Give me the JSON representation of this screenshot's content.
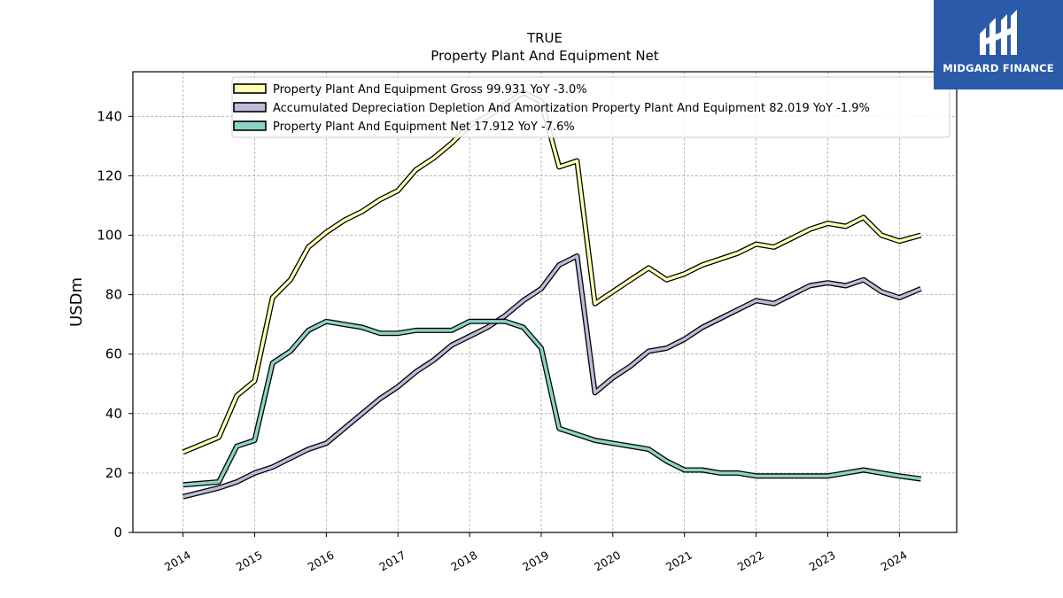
{
  "logo": {
    "text": "MIDGARD FINANCE",
    "background": "#2b5aa8"
  },
  "chart_data": {
    "type": "line",
    "title": "TRUE",
    "subtitle": "Property Plant And Equipment Net",
    "xlabel": "",
    "ylabel": "USDm",
    "ylim": [
      0,
      155
    ],
    "xlim": [
      2013.3,
      2024.8
    ],
    "yticks": [
      0,
      20,
      40,
      60,
      80,
      100,
      120,
      140
    ],
    "xticks": [
      "2014",
      "2015",
      "2016",
      "2017",
      "2018",
      "2019",
      "2020",
      "2021",
      "2022",
      "2023",
      "2024"
    ],
    "grid": true,
    "legend_position": "top",
    "x": [
      2014.0,
      2014.5,
      2014.75,
      2015.0,
      2015.25,
      2015.5,
      2015.75,
      2016.0,
      2016.25,
      2016.5,
      2016.75,
      2017.0,
      2017.25,
      2017.5,
      2017.75,
      2018.0,
      2018.25,
      2018.5,
      2018.75,
      2019.0,
      2019.25,
      2019.5,
      2019.75,
      2020.0,
      2020.25,
      2020.5,
      2020.75,
      2021.0,
      2021.25,
      2021.5,
      2021.75,
      2022.0,
      2022.25,
      2022.5,
      2022.75,
      2023.0,
      2023.25,
      2023.5,
      2023.75,
      2024.0,
      2024.3
    ],
    "series": [
      {
        "name": "Property Plant And Equipment Gross",
        "legend": "Property Plant And Equipment Gross  99.931 YoY -3.0%",
        "color": "#ffffb3",
        "values": [
          27,
          32,
          46,
          51,
          79,
          85,
          96,
          101,
          105,
          108,
          112,
          115,
          122,
          126,
          131,
          137,
          140,
          144,
          148,
          145,
          123,
          125,
          77,
          81,
          85,
          89,
          85,
          87,
          90,
          92,
          94,
          97,
          96,
          99,
          102,
          104,
          103,
          106,
          100,
          98,
          100
        ],
        "values_note": ""
      },
      {
        "name": "Accumulated Depreciation Depletion And Amortization Property Plant And Equipment",
        "legend": "Accumulated Depreciation Depletion And Amortization Property Plant And Equipment  82.019 YoY -1.9%",
        "color": "#bebada",
        "values": [
          12,
          15,
          17,
          20,
          22,
          25,
          28,
          30,
          35,
          40,
          45,
          49,
          54,
          58,
          63,
          66,
          69,
          73,
          78,
          82,
          90,
          93,
          47,
          52,
          56,
          61,
          62,
          65,
          69,
          72,
          75,
          78,
          77,
          80,
          83,
          84,
          83,
          85,
          81,
          79,
          82
        ]
      },
      {
        "name": "Property Plant And Equipment Net",
        "legend": "Property Plant And Equipment Net  17.912 YoY -7.6%",
        "color": "#8dd3c7",
        "values": [
          16,
          17,
          29,
          31,
          57,
          61,
          68,
          71,
          70,
          69,
          67,
          67,
          68,
          68,
          68,
          71,
          71,
          71,
          69,
          62,
          35,
          33,
          31,
          30,
          29,
          28,
          24,
          21,
          21,
          20,
          20,
          19,
          19,
          19,
          19,
          19,
          20,
          21,
          20,
          19,
          18
        ]
      }
    ]
  }
}
